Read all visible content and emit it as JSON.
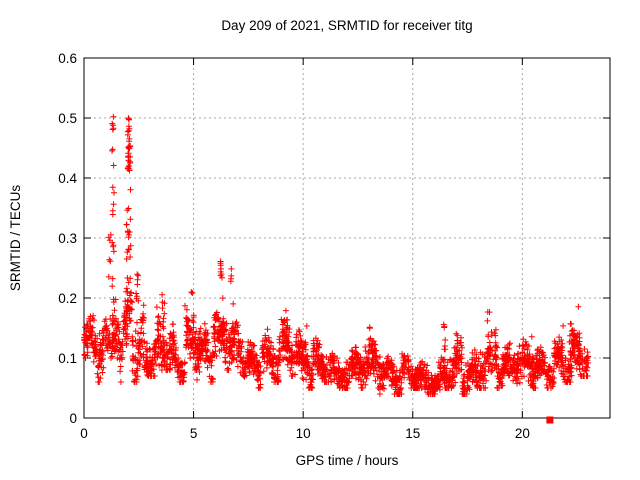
{
  "chart_data": {
    "type": "scatter",
    "title": "Day 209 of 2021, SRMTID for receiver titg",
    "xlabel": "GPS time / hours",
    "ylabel": "SRMTID / TECUs",
    "xlim": [
      0,
      24
    ],
    "ylim": [
      0,
      0.6
    ],
    "xticks": {
      "values": [
        0,
        5,
        10,
        15,
        20
      ],
      "labels": [
        "0",
        "5",
        "10",
        "15",
        "20"
      ]
    },
    "yticks": {
      "values": [
        0,
        0.1,
        0.2,
        0.3,
        0.4,
        0.5,
        0.6
      ],
      "labels": [
        "0",
        "0.1",
        "0.2",
        "0.3",
        "0.4",
        "0.5",
        "0.6"
      ]
    },
    "grid": true,
    "legend": "none",
    "marker": {
      "shape": "plus",
      "color": "#ff0000",
      "size": 7
    },
    "isolated_point": {
      "x": 21.26,
      "y": 0.0,
      "marker": "filled-square",
      "color": "#ff0000",
      "size": 7
    },
    "data_extent": {
      "x_start": 0.0,
      "x_end": 23.0,
      "y_min": 0.03,
      "y_max": 0.52
    },
    "scatter_profile": {
      "seed": 42,
      "points_per_hour": 120,
      "bands": [
        {
          "x0": 0.0,
          "x1": 0.6,
          "lo": 0.08,
          "hi": 0.18
        },
        {
          "x0": 0.6,
          "x1": 1.15,
          "lo": 0.06,
          "hi": 0.17
        },
        {
          "x0": 1.15,
          "x1": 1.45,
          "lo": 0.1,
          "hi": 0.23
        },
        {
          "x0": 1.45,
          "x1": 1.75,
          "lo": 0.06,
          "hi": 0.19
        },
        {
          "x0": 1.75,
          "x1": 2.2,
          "lo": 0.1,
          "hi": 0.24
        },
        {
          "x0": 2.2,
          "x1": 2.75,
          "lo": 0.06,
          "hi": 0.21
        },
        {
          "x0": 2.75,
          "x1": 3.3,
          "lo": 0.07,
          "hi": 0.16
        },
        {
          "x0": 3.3,
          "x1": 4.1,
          "lo": 0.08,
          "hi": 0.2
        },
        {
          "x0": 4.1,
          "x1": 4.6,
          "lo": 0.06,
          "hi": 0.15
        },
        {
          "x0": 4.6,
          "x1": 5.15,
          "lo": 0.08,
          "hi": 0.2
        },
        {
          "x0": 5.15,
          "x1": 5.9,
          "lo": 0.06,
          "hi": 0.16
        },
        {
          "x0": 5.9,
          "x1": 6.6,
          "lo": 0.08,
          "hi": 0.2
        },
        {
          "x0": 6.6,
          "x1": 7.3,
          "lo": 0.07,
          "hi": 0.17
        },
        {
          "x0": 7.3,
          "x1": 8.1,
          "lo": 0.05,
          "hi": 0.13
        },
        {
          "x0": 8.1,
          "x1": 8.9,
          "lo": 0.06,
          "hi": 0.15
        },
        {
          "x0": 8.9,
          "x1": 9.6,
          "lo": 0.07,
          "hi": 0.18
        },
        {
          "x0": 9.6,
          "x1": 10.45,
          "lo": 0.05,
          "hi": 0.15
        },
        {
          "x0": 10.45,
          "x1": 11.3,
          "lo": 0.06,
          "hi": 0.14
        },
        {
          "x0": 11.3,
          "x1": 12.6,
          "lo": 0.05,
          "hi": 0.12
        },
        {
          "x0": 12.6,
          "x1": 13.5,
          "lo": 0.05,
          "hi": 0.14
        },
        {
          "x0": 13.5,
          "x1": 14.5,
          "lo": 0.04,
          "hi": 0.11
        },
        {
          "x0": 14.5,
          "x1": 15.5,
          "lo": 0.05,
          "hi": 0.12
        },
        {
          "x0": 15.5,
          "x1": 16.4,
          "lo": 0.04,
          "hi": 0.11
        },
        {
          "x0": 16.4,
          "x1": 17.25,
          "lo": 0.05,
          "hi": 0.14
        },
        {
          "x0": 17.25,
          "x1": 17.85,
          "lo": 0.04,
          "hi": 0.12
        },
        {
          "x0": 17.85,
          "x1": 18.85,
          "lo": 0.05,
          "hi": 0.16
        },
        {
          "x0": 18.85,
          "x1": 19.7,
          "lo": 0.05,
          "hi": 0.13
        },
        {
          "x0": 19.7,
          "x1": 20.6,
          "lo": 0.05,
          "hi": 0.14
        },
        {
          "x0": 20.6,
          "x1": 21.45,
          "lo": 0.05,
          "hi": 0.12
        },
        {
          "x0": 21.45,
          "x1": 22.25,
          "lo": 0.06,
          "hi": 0.14
        },
        {
          "x0": 22.25,
          "x1": 23.0,
          "lo": 0.07,
          "hi": 0.16
        }
      ],
      "columns": [
        {
          "x": 1.18,
          "lo": 0.2,
          "hi": 0.32,
          "n": 6
        },
        {
          "x": 1.33,
          "lo": 0.28,
          "hi": 0.52,
          "n": 16
        },
        {
          "x": 1.33,
          "lo": 0.15,
          "hi": 0.28,
          "n": 8
        },
        {
          "x": 1.95,
          "lo": 0.17,
          "hi": 0.4,
          "n": 12
        },
        {
          "x": 2.05,
          "lo": 0.41,
          "hi": 0.5,
          "n": 34
        },
        {
          "x": 2.08,
          "lo": 0.26,
          "hi": 0.41,
          "n": 10
        },
        {
          "x": 2.42,
          "lo": 0.13,
          "hi": 0.25,
          "n": 10
        },
        {
          "x": 3.62,
          "lo": 0.12,
          "hi": 0.23,
          "n": 10
        },
        {
          "x": 4.95,
          "lo": 0.12,
          "hi": 0.21,
          "n": 8
        },
        {
          "x": 6.28,
          "lo": 0.12,
          "hi": 0.27,
          "n": 12
        },
        {
          "x": 6.75,
          "lo": 0.11,
          "hi": 0.25,
          "n": 8
        },
        {
          "x": 9.25,
          "lo": 0.1,
          "hi": 0.21,
          "n": 10
        },
        {
          "x": 10.15,
          "lo": 0.09,
          "hi": 0.17,
          "n": 8
        },
        {
          "x": 13.0,
          "lo": 0.08,
          "hi": 0.16,
          "n": 8
        },
        {
          "x": 16.45,
          "lo": 0.08,
          "hi": 0.17,
          "n": 8
        },
        {
          "x": 17.0,
          "lo": 0.08,
          "hi": 0.15,
          "n": 6
        },
        {
          "x": 18.45,
          "lo": 0.08,
          "hi": 0.18,
          "n": 8
        },
        {
          "x": 20.45,
          "lo": 0.08,
          "hi": 0.15,
          "n": 6
        },
        {
          "x": 21.8,
          "lo": 0.08,
          "hi": 0.16,
          "n": 6
        },
        {
          "x": 22.2,
          "lo": 0.09,
          "hi": 0.19,
          "n": 8
        },
        {
          "x": 22.55,
          "lo": 0.09,
          "hi": 0.19,
          "n": 10
        }
      ]
    }
  },
  "colors": {
    "background": "#ffffff",
    "axis": "#000000",
    "grid": "#a8a8a8",
    "series": "#ff0000",
    "text": "#000000"
  }
}
